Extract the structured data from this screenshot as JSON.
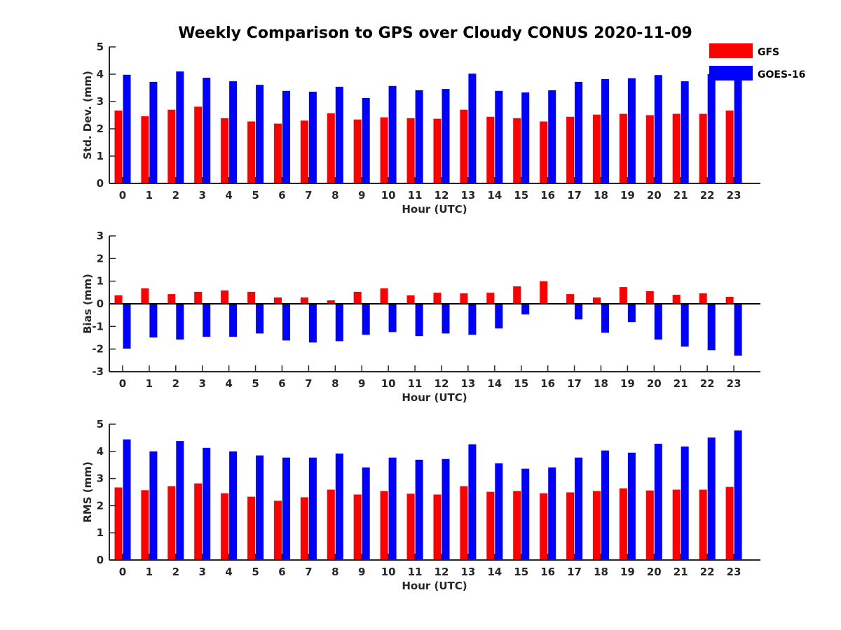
{
  "title": "Weekly Comparison to GPS over Cloudy CONUS 2020-11-09",
  "legend": [
    {
      "label": "GFS",
      "color": "#ff0000"
    },
    {
      "label": "GOES-16",
      "color": "#0000ff"
    }
  ],
  "chart_data": [
    {
      "type": "bar",
      "xlabel": "Hour (UTC)",
      "ylabel": "Std. Dev. (mm)",
      "ylim": [
        0,
        5
      ],
      "yticks": [
        0,
        1,
        2,
        3,
        4,
        5
      ],
      "categories": [
        "0",
        "1",
        "2",
        "3",
        "4",
        "5",
        "6",
        "7",
        "8",
        "9",
        "10",
        "11",
        "12",
        "13",
        "14",
        "15",
        "16",
        "17",
        "18",
        "19",
        "20",
        "21",
        "22",
        "23"
      ],
      "series": [
        {
          "name": "GFS",
          "color": "#ff0000",
          "values": [
            2.67,
            2.46,
            2.7,
            2.81,
            2.39,
            2.27,
            2.19,
            2.3,
            2.57,
            2.34,
            2.42,
            2.39,
            2.37,
            2.7,
            2.44,
            2.39,
            2.27,
            2.44,
            2.52,
            2.55,
            2.5,
            2.55,
            2.55,
            2.67
          ]
        },
        {
          "name": "GOES-16",
          "color": "#0000ff",
          "values": [
            3.98,
            3.72,
            4.1,
            3.87,
            3.74,
            3.61,
            3.39,
            3.36,
            3.54,
            3.13,
            3.57,
            3.41,
            3.46,
            4.02,
            3.39,
            3.33,
            3.41,
            3.72,
            3.82,
            3.85,
            3.97,
            3.74,
            4.0,
            4.0
          ]
        }
      ]
    },
    {
      "type": "bar",
      "xlabel": "Hour (UTC)",
      "ylabel": "Bias (mm)",
      "ylim": [
        -3,
        3
      ],
      "yticks": [
        -3,
        -2,
        -1,
        0,
        1,
        2,
        3
      ],
      "categories": [
        "0",
        "1",
        "2",
        "3",
        "4",
        "5",
        "6",
        "7",
        "8",
        "9",
        "10",
        "11",
        "12",
        "13",
        "14",
        "15",
        "16",
        "17",
        "18",
        "19",
        "20",
        "21",
        "22",
        "23"
      ],
      "series": [
        {
          "name": "GFS",
          "color": "#ff0000",
          "values": [
            0.37,
            0.68,
            0.43,
            0.53,
            0.59,
            0.53,
            0.28,
            0.28,
            0.15,
            0.53,
            0.68,
            0.37,
            0.49,
            0.46,
            0.49,
            0.77,
            1.0,
            0.43,
            0.28,
            0.74,
            0.56,
            0.4,
            0.46,
            0.31
          ]
        },
        {
          "name": "GOES-16",
          "color": "#0000ff",
          "values": [
            -1.98,
            -1.49,
            -1.58,
            -1.46,
            -1.46,
            -1.31,
            -1.62,
            -1.71,
            -1.65,
            -1.37,
            -1.25,
            -1.43,
            -1.31,
            -1.37,
            -1.09,
            -0.47,
            0.03,
            -0.69,
            -1.28,
            -0.81,
            -1.58,
            -1.89,
            -2.05,
            -2.29
          ]
        }
      ]
    },
    {
      "type": "bar",
      "xlabel": "Hour (UTC)",
      "ylabel": "RMS (mm)",
      "ylim": [
        0,
        5
      ],
      "yticks": [
        0,
        1,
        2,
        3,
        4,
        5
      ],
      "categories": [
        "0",
        "1",
        "2",
        "3",
        "4",
        "5",
        "6",
        "7",
        "8",
        "9",
        "10",
        "11",
        "12",
        "13",
        "14",
        "15",
        "16",
        "17",
        "18",
        "19",
        "20",
        "21",
        "22",
        "23"
      ],
      "series": [
        {
          "name": "GFS",
          "color": "#ff0000",
          "values": [
            2.67,
            2.57,
            2.72,
            2.82,
            2.46,
            2.33,
            2.18,
            2.31,
            2.59,
            2.41,
            2.54,
            2.44,
            2.41,
            2.72,
            2.51,
            2.54,
            2.46,
            2.49,
            2.54,
            2.64,
            2.56,
            2.59,
            2.59,
            2.69
          ]
        },
        {
          "name": "GOES-16",
          "color": "#0000ff",
          "values": [
            4.44,
            4.0,
            4.38,
            4.13,
            4.0,
            3.85,
            3.77,
            3.77,
            3.92,
            3.41,
            3.77,
            3.69,
            3.72,
            4.26,
            3.56,
            3.36,
            3.41,
            3.77,
            4.03,
            3.95,
            4.28,
            4.18,
            4.51,
            4.77
          ]
        }
      ]
    }
  ]
}
